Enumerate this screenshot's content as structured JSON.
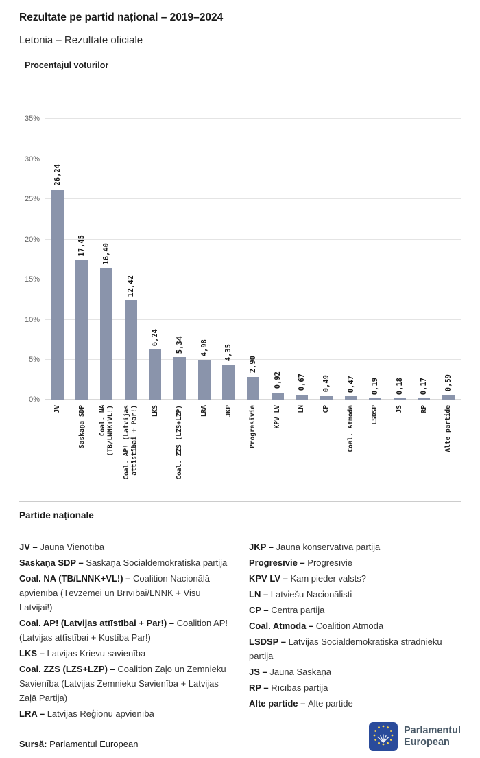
{
  "header": {
    "title": "Rezultate pe partid național – 2019–2024",
    "subtitle": "Letonia – Rezultate oficiale"
  },
  "chart_data": {
    "type": "bar",
    "title": "Procentajul voturilor",
    "categories": [
      "JV",
      "Saskaņa SDP",
      "Coal. NA (TB/LNNK+VL!)",
      "Coal. AP! (Latvijas attīstībai + Par!)",
      "LKS",
      "Coal. ZZS (LZS+LZP)",
      "LRA",
      "JKP",
      "Progresīvie",
      "KPV LV",
      "LN",
      "CP",
      "Coal. Atmoda",
      "LSDSP",
      "JS",
      "RP",
      "Alte partide"
    ],
    "tick_labels": [
      "JV",
      "Saskaņa SDP",
      "Coal. NA\n(TB/LNNK+VL!)",
      "Coal. AP! (Latvijas\nattīstībai + Par!)",
      "LKS",
      "Coal. ZZS (LZS+LZP)",
      "LRA",
      "JKP",
      "Progresīvie",
      "KPV LV",
      "LN",
      "CP",
      "Coal. Atmoda",
      "LSDSP",
      "JS",
      "RP",
      "Alte partide"
    ],
    "values": [
      26.24,
      17.45,
      16.4,
      12.42,
      6.24,
      5.34,
      4.98,
      4.35,
      2.9,
      0.92,
      0.67,
      0.49,
      0.47,
      0.19,
      0.18,
      0.17,
      0.59
    ],
    "value_labels": [
      "26,24",
      "17,45",
      "16,40",
      "12,42",
      "6,24",
      "5,34",
      "4,98",
      "4,35",
      "2,90",
      "0,92",
      "0,67",
      "0,49",
      "0,47",
      "0,19",
      "0,18",
      "0,17",
      "0,59"
    ],
    "xlabel": "",
    "ylabel": "",
    "ylim": [
      0,
      35
    ],
    "yticks": [
      0,
      5,
      10,
      15,
      20,
      25,
      30,
      35
    ],
    "ytick_labels": [
      "0%",
      "5%",
      "10%",
      "15%",
      "20%",
      "25%",
      "30%",
      "35%"
    ],
    "grid": true,
    "legend_position": "none",
    "bar_color": "#8a94ab"
  },
  "legend_section": {
    "heading": "Partide naționale",
    "columns": {
      "left": [
        {
          "abbr": "JV –",
          "desc": "Jaunā Vienotība"
        },
        {
          "abbr": "Saskaņa SDP –",
          "desc": "Saskaņa Sociāldemokrātiskā partija"
        },
        {
          "abbr": "Coal. NA (TB/LNNK+VL!) –",
          "desc": "Coalition Nacionālā apvienība (Tēvzemei un Brīvībai/LNNK + Visu Latvijai!)"
        },
        {
          "abbr": "Coal. AP! (Latvijas attīstībai + Par!) –",
          "desc": "Coalition AP! (Latvijas attīstībai + Kustība Par!)"
        },
        {
          "abbr": "LKS –",
          "desc": "Latvijas Krievu savienība"
        },
        {
          "abbr": "Coal. ZZS (LZS+LZP) –",
          "desc": "Coalition Zaļo un Zemnieku Savienība (Latvijas Zemnieku Savienība + Latvijas Zaļā Partija)"
        },
        {
          "abbr": "LRA –",
          "desc": "Latvijas Reģionu apvienība"
        }
      ],
      "right": [
        {
          "abbr": "JKP –",
          "desc": "Jaunā konservatīvā partija"
        },
        {
          "abbr": "Progresīvie –",
          "desc": "Progresīvie"
        },
        {
          "abbr": "KPV LV –",
          "desc": "Kam pieder valsts?"
        },
        {
          "abbr": "LN –",
          "desc": "Latviešu Nacionālisti"
        },
        {
          "abbr": "CP –",
          "desc": "Centra partija"
        },
        {
          "abbr": "Coal. Atmoda –",
          "desc": "Coalition Atmoda"
        },
        {
          "abbr": "LSDSP –",
          "desc": "Latvijas Sociāldemokrātiskā strādnieku partija"
        },
        {
          "abbr": "JS –",
          "desc": "Jaunā Saskaņa"
        },
        {
          "abbr": "RP –",
          "desc": "Rīcības partija"
        },
        {
          "abbr": "Alte partide –",
          "desc": "Alte partide"
        }
      ]
    }
  },
  "footer": {
    "source_label": "Sursă:",
    "source_text": "Parlamentul European",
    "logo_text_line1": "Parlamentul",
    "logo_text_line2": "European"
  },
  "colors": {
    "bar": "#8a94ab",
    "grid": "#e4e4e4",
    "baseline": "#d9d9d9",
    "logo_blue": "#2a4b9b",
    "logo_star": "#ffd94d",
    "logo_text": "#4a5a68"
  }
}
